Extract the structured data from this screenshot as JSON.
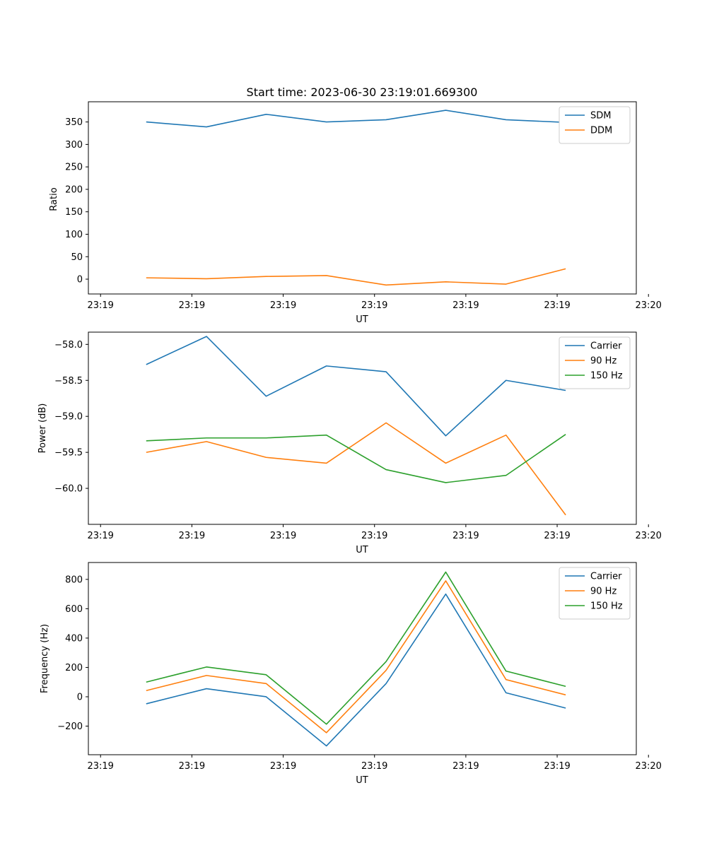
{
  "chart_data": [
    {
      "type": "line",
      "title": "Start time: 2023-06-30 23:19:01.669300",
      "xlabel": "UT",
      "ylabel": "Ratio",
      "x_tick_labels": [
        "23:19",
        "23:19",
        "23:19",
        "23:19",
        "23:19",
        "23:19",
        "23:20"
      ],
      "xlim": [
        -0.2,
        8.8
      ],
      "x_ticks": [
        0,
        1.5,
        3,
        4.5,
        6,
        7.5,
        9
      ],
      "x": [
        0.75,
        1.74,
        2.72,
        3.71,
        4.69,
        5.67,
        6.66,
        7.64
      ],
      "ylim": [
        -33,
        395
      ],
      "y_ticks": [
        0,
        50,
        100,
        150,
        200,
        250,
        300,
        350
      ],
      "y_tick_labels": [
        "0",
        "50",
        "100",
        "150",
        "200",
        "250",
        "300",
        "350"
      ],
      "legend_position": "upper right",
      "series": [
        {
          "name": "SDM",
          "color": "#1f77b4",
          "values": [
            350,
            339,
            367,
            350,
            355,
            376,
            355,
            349
          ]
        },
        {
          "name": "DDM",
          "color": "#ff7f0e",
          "values": [
            3,
            1,
            6,
            8,
            -13,
            -6,
            -11,
            23
          ]
        }
      ]
    },
    {
      "type": "line",
      "title": "",
      "xlabel": "UT",
      "ylabel": "Power (dB)",
      "x_tick_labels": [
        "23:19",
        "23:19",
        "23:19",
        "23:19",
        "23:19",
        "23:19",
        "23:20"
      ],
      "xlim": [
        -0.2,
        8.8
      ],
      "x_ticks": [
        0,
        1.5,
        3,
        4.5,
        6,
        7.5,
        9
      ],
      "x": [
        0.75,
        1.74,
        2.72,
        3.71,
        4.69,
        5.67,
        6.66,
        7.64
      ],
      "ylim": [
        -60.5,
        -57.83
      ],
      "y_ticks": [
        -60.0,
        -59.5,
        -59.0,
        -58.5,
        -58.0
      ],
      "y_tick_labels": [
        "−60.0",
        "−59.5",
        "−59.0",
        "−58.5",
        "−58.0"
      ],
      "legend_position": "upper right",
      "series": [
        {
          "name": "Carrier",
          "color": "#1f77b4",
          "values": [
            -58.28,
            -57.89,
            -58.72,
            -58.3,
            -58.38,
            -59.27,
            -58.5,
            -58.64
          ]
        },
        {
          "name": "90 Hz",
          "color": "#ff7f0e",
          "values": [
            -59.5,
            -59.35,
            -59.57,
            -59.65,
            -59.09,
            -59.65,
            -59.26,
            -60.37
          ]
        },
        {
          "name": "150 Hz",
          "color": "#2ca02c",
          "values": [
            -59.34,
            -59.3,
            -59.3,
            -59.26,
            -59.74,
            -59.92,
            -59.82,
            -59.25
          ]
        }
      ]
    },
    {
      "type": "line",
      "title": "",
      "xlabel": "UT",
      "ylabel": "Frequency (Hz)",
      "x_tick_labels": [
        "23:19",
        "23:19",
        "23:19",
        "23:19",
        "23:19",
        "23:19",
        "23:20"
      ],
      "xlim": [
        -0.2,
        8.8
      ],
      "x_ticks": [
        0,
        1.5,
        3,
        4.5,
        6,
        7.5,
        9
      ],
      "x": [
        0.75,
        1.74,
        2.72,
        3.71,
        4.69,
        5.67,
        6.66,
        7.64
      ],
      "ylim": [
        -395,
        915
      ],
      "y_ticks": [
        -200,
        0,
        200,
        400,
        600,
        800
      ],
      "y_tick_labels": [
        "−200",
        "0",
        "200",
        "400",
        "600",
        "800"
      ],
      "legend_position": "upper right",
      "series": [
        {
          "name": "Carrier",
          "color": "#1f77b4",
          "values": [
            -48,
            55,
            0,
            -335,
            90,
            700,
            27,
            -77
          ]
        },
        {
          "name": "90 Hz",
          "color": "#ff7f0e",
          "values": [
            42,
            145,
            90,
            -245,
            180,
            790,
            117,
            13
          ]
        },
        {
          "name": "150 Hz",
          "color": "#2ca02c",
          "values": [
            100,
            203,
            150,
            -187,
            240,
            850,
            175,
            71
          ]
        }
      ]
    }
  ]
}
